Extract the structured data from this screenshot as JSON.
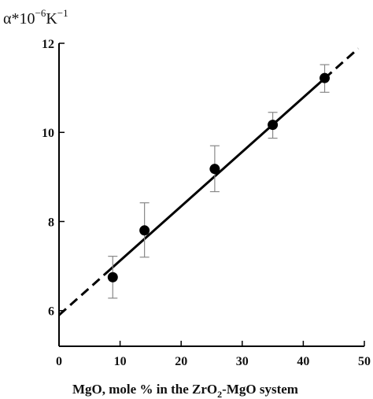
{
  "chart_data": {
    "type": "scatter",
    "ylabel": {
      "base": "α*10",
      "exp1": "−6",
      "unit": "K",
      "exp2": "−1"
    },
    "xlabel": {
      "prefix": "MgO, mole % in the ZrO",
      "sub": "2",
      "suffix": "-MgO system"
    },
    "xlim": [
      0,
      50
    ],
    "ylim": [
      5.2,
      12
    ],
    "x_ticks": [
      0,
      10,
      20,
      30,
      40,
      50
    ],
    "x_tick_labels": [
      "0",
      "10",
      "20",
      "30",
      "40",
      "50"
    ],
    "y_ticks": [
      6,
      8,
      10,
      12
    ],
    "y_tick_labels": [
      "6",
      "8",
      "10",
      "12"
    ],
    "grid": false,
    "series": [
      {
        "points": [
          {
            "x": 8.8,
            "y": 6.75,
            "err_low": 6.28,
            "err_high": 7.22
          },
          {
            "x": 14,
            "y": 7.8,
            "err_low": 7.2,
            "err_high": 8.42
          },
          {
            "x": 25.5,
            "y": 9.18,
            "err_low": 8.67,
            "err_high": 9.7
          },
          {
            "x": 35,
            "y": 10.17,
            "err_low": 9.87,
            "err_high": 10.45
          },
          {
            "x": 43.5,
            "y": 11.22,
            "err_low": 10.9,
            "err_high": 11.52
          }
        ]
      }
    ],
    "fit_line": {
      "solid_from_x": 7.5,
      "solid_to_x": 43.5,
      "dashed_from_x": 0,
      "dashed_to_x": 49,
      "intercept": 5.9,
      "slope": 0.1221
    }
  }
}
